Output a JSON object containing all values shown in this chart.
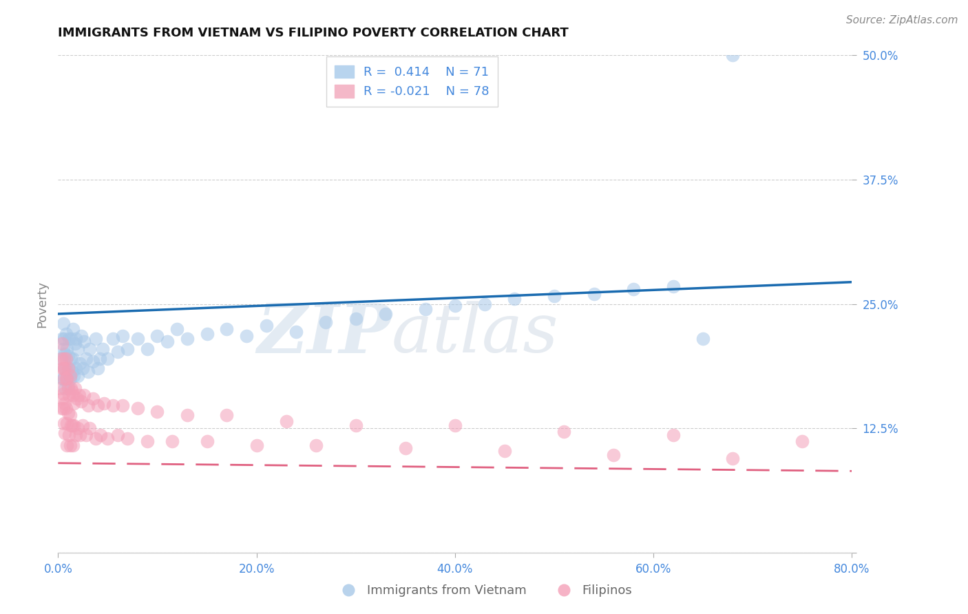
{
  "title": "IMMIGRANTS FROM VIETNAM VS FILIPINO POVERTY CORRELATION CHART",
  "source_text": "Source: ZipAtlas.com",
  "ylabel": "Poverty",
  "watermark_zip": "ZIP",
  "watermark_atlas": "atlas",
  "xlim": [
    0.0,
    0.8
  ],
  "ylim": [
    0.0,
    0.5
  ],
  "xticks": [
    0.0,
    0.2,
    0.4,
    0.6,
    0.8
  ],
  "xtick_labels": [
    "0.0%",
    "20.0%",
    "40.0%",
    "60.0%",
    "80.0%"
  ],
  "yticks": [
    0.0,
    0.125,
    0.25,
    0.375,
    0.5
  ],
  "ytick_labels": [
    "",
    "12.5%",
    "25.0%",
    "37.5%",
    "50.0%"
  ],
  "blue_R": 0.414,
  "blue_N": 71,
  "pink_R": -0.021,
  "pink_N": 78,
  "blue_dot_color": "#a8c8e8",
  "pink_dot_color": "#f4a0b8",
  "blue_line_color": "#1a6bb0",
  "pink_line_color": "#e06080",
  "legend_label_blue": "Immigrants from Vietnam",
  "legend_label_pink": "Filipinos",
  "grid_color": "#cccccc",
  "bg_color": "#ffffff",
  "title_color": "#111111",
  "axis_label_color": "#888888",
  "tick_color": "#4488dd",
  "blue_scatter_x": [
    0.003,
    0.004,
    0.004,
    0.005,
    0.005,
    0.005,
    0.006,
    0.006,
    0.007,
    0.007,
    0.008,
    0.008,
    0.009,
    0.009,
    0.01,
    0.01,
    0.011,
    0.011,
    0.012,
    0.013,
    0.013,
    0.014,
    0.015,
    0.015,
    0.016,
    0.017,
    0.018,
    0.018,
    0.02,
    0.02,
    0.022,
    0.023,
    0.025,
    0.026,
    0.028,
    0.03,
    0.032,
    0.035,
    0.038,
    0.04,
    0.042,
    0.045,
    0.05,
    0.055,
    0.06,
    0.065,
    0.07,
    0.08,
    0.09,
    0.1,
    0.11,
    0.12,
    0.13,
    0.15,
    0.17,
    0.19,
    0.21,
    0.24,
    0.27,
    0.3,
    0.33,
    0.37,
    0.4,
    0.43,
    0.46,
    0.5,
    0.54,
    0.58,
    0.62,
    0.65,
    0.68
  ],
  "blue_scatter_y": [
    0.195,
    0.215,
    0.175,
    0.205,
    0.175,
    0.23,
    0.185,
    0.215,
    0.165,
    0.2,
    0.185,
    0.22,
    0.175,
    0.205,
    0.168,
    0.198,
    0.185,
    0.215,
    0.175,
    0.195,
    0.215,
    0.182,
    0.195,
    0.225,
    0.178,
    0.21,
    0.185,
    0.215,
    0.178,
    0.205,
    0.19,
    0.218,
    0.185,
    0.212,
    0.195,
    0.182,
    0.205,
    0.192,
    0.215,
    0.185,
    0.195,
    0.205,
    0.195,
    0.215,
    0.202,
    0.218,
    0.205,
    0.215,
    0.205,
    0.218,
    0.212,
    0.225,
    0.215,
    0.22,
    0.225,
    0.218,
    0.228,
    0.222,
    0.232,
    0.235,
    0.24,
    0.245,
    0.248,
    0.25,
    0.255,
    0.258,
    0.26,
    0.265,
    0.268,
    0.215,
    0.5
  ],
  "pink_scatter_x": [
    0.002,
    0.003,
    0.003,
    0.004,
    0.004,
    0.004,
    0.005,
    0.005,
    0.005,
    0.006,
    0.006,
    0.006,
    0.007,
    0.007,
    0.007,
    0.008,
    0.008,
    0.008,
    0.009,
    0.009,
    0.009,
    0.01,
    0.01,
    0.01,
    0.011,
    0.011,
    0.012,
    0.012,
    0.012,
    0.013,
    0.013,
    0.014,
    0.014,
    0.015,
    0.015,
    0.016,
    0.016,
    0.017,
    0.018,
    0.019,
    0.02,
    0.021,
    0.022,
    0.023,
    0.025,
    0.026,
    0.028,
    0.03,
    0.032,
    0.035,
    0.038,
    0.04,
    0.043,
    0.046,
    0.05,
    0.055,
    0.06,
    0.065,
    0.07,
    0.08,
    0.09,
    0.1,
    0.115,
    0.13,
    0.15,
    0.17,
    0.2,
    0.23,
    0.26,
    0.3,
    0.35,
    0.4,
    0.45,
    0.51,
    0.56,
    0.62,
    0.68,
    0.75
  ],
  "pink_scatter_y": [
    0.165,
    0.195,
    0.145,
    0.185,
    0.155,
    0.21,
    0.145,
    0.185,
    0.16,
    0.195,
    0.13,
    0.175,
    0.15,
    0.185,
    0.12,
    0.175,
    0.145,
    0.195,
    0.13,
    0.175,
    0.108,
    0.165,
    0.14,
    0.185,
    0.118,
    0.158,
    0.138,
    0.178,
    0.108,
    0.165,
    0.128,
    0.162,
    0.128,
    0.158,
    0.108,
    0.15,
    0.128,
    0.165,
    0.118,
    0.155,
    0.125,
    0.158,
    0.118,
    0.152,
    0.128,
    0.158,
    0.118,
    0.148,
    0.125,
    0.155,
    0.115,
    0.148,
    0.118,
    0.15,
    0.115,
    0.148,
    0.118,
    0.148,
    0.115,
    0.145,
    0.112,
    0.142,
    0.112,
    0.138,
    0.112,
    0.138,
    0.108,
    0.132,
    0.108,
    0.128,
    0.105,
    0.128,
    0.102,
    0.122,
    0.098,
    0.118,
    0.095,
    0.112
  ]
}
